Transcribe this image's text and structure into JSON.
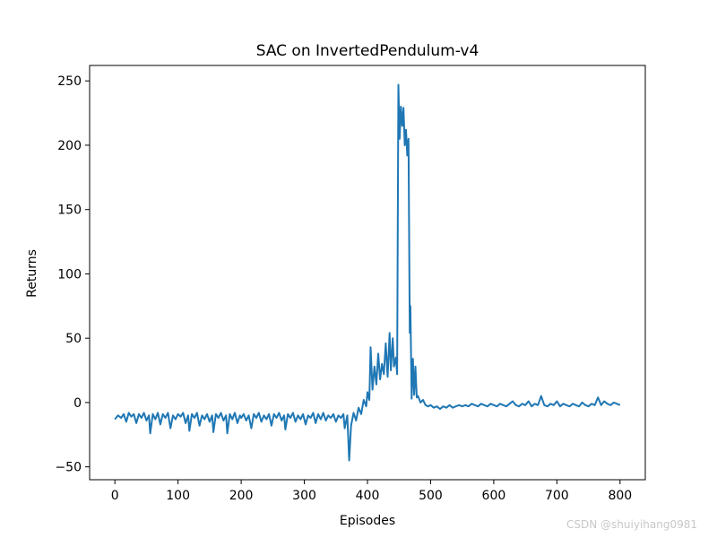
{
  "chart_data": {
    "type": "line",
    "title": "SAC on InvertedPendulum-v4",
    "xlabel": "Episodes",
    "ylabel": "Returns",
    "xlim": [
      -40,
      840
    ],
    "ylim": [
      -60,
      262
    ],
    "xticks": [
      0,
      100,
      200,
      300,
      400,
      500,
      600,
      700,
      800
    ],
    "yticks": [
      -50,
      0,
      50,
      100,
      150,
      200,
      250
    ],
    "grid": false,
    "color": "#1f77b4",
    "series": [
      {
        "points": [
          [
            0,
            -13
          ],
          [
            5,
            -10
          ],
          [
            10,
            -12
          ],
          [
            14,
            -9
          ],
          [
            18,
            -15
          ],
          [
            22,
            -8
          ],
          [
            26,
            -11
          ],
          [
            30,
            -9
          ],
          [
            34,
            -16
          ],
          [
            38,
            -9
          ],
          [
            42,
            -12
          ],
          [
            46,
            -8
          ],
          [
            50,
            -14
          ],
          [
            54,
            -10
          ],
          [
            56,
            -24
          ],
          [
            60,
            -9
          ],
          [
            64,
            -13
          ],
          [
            68,
            -8
          ],
          [
            72,
            -17
          ],
          [
            76,
            -9
          ],
          [
            80,
            -12
          ],
          [
            84,
            -8
          ],
          [
            88,
            -20
          ],
          [
            92,
            -10
          ],
          [
            96,
            -13
          ],
          [
            100,
            -9
          ],
          [
            104,
            -11
          ],
          [
            108,
            -8
          ],
          [
            112,
            -16
          ],
          [
            116,
            -10
          ],
          [
            118,
            -22
          ],
          [
            122,
            -9
          ],
          [
            126,
            -12
          ],
          [
            130,
            -8
          ],
          [
            134,
            -18
          ],
          [
            138,
            -10
          ],
          [
            142,
            -13
          ],
          [
            146,
            -9
          ],
          [
            150,
            -15
          ],
          [
            154,
            -10
          ],
          [
            156,
            -23
          ],
          [
            160,
            -9
          ],
          [
            164,
            -12
          ],
          [
            168,
            -8
          ],
          [
            172,
            -14
          ],
          [
            176,
            -10
          ],
          [
            178,
            -24
          ],
          [
            182,
            -9
          ],
          [
            186,
            -13
          ],
          [
            190,
            -8
          ],
          [
            194,
            -16
          ],
          [
            198,
            -10
          ],
          [
            200,
            -12
          ],
          [
            204,
            -9
          ],
          [
            208,
            -14
          ],
          [
            212,
            -10
          ],
          [
            216,
            -20
          ],
          [
            220,
            -9
          ],
          [
            224,
            -12
          ],
          [
            228,
            -8
          ],
          [
            232,
            -15
          ],
          [
            236,
            -10
          ],
          [
            240,
            -13
          ],
          [
            244,
            -9
          ],
          [
            248,
            -18
          ],
          [
            252,
            -9
          ],
          [
            256,
            -12
          ],
          [
            260,
            -8
          ],
          [
            264,
            -14
          ],
          [
            268,
            -10
          ],
          [
            270,
            -21
          ],
          [
            274,
            -9
          ],
          [
            278,
            -12
          ],
          [
            282,
            -8
          ],
          [
            286,
            -15
          ],
          [
            290,
            -10
          ],
          [
            294,
            -13
          ],
          [
            298,
            -9
          ],
          [
            302,
            -17
          ],
          [
            306,
            -10
          ],
          [
            310,
            -12
          ],
          [
            314,
            -8
          ],
          [
            318,
            -16
          ],
          [
            322,
            -9
          ],
          [
            326,
            -13
          ],
          [
            330,
            -8
          ],
          [
            334,
            -14
          ],
          [
            338,
            -10
          ],
          [
            342,
            -12
          ],
          [
            346,
            -9
          ],
          [
            350,
            -15
          ],
          [
            354,
            -10
          ],
          [
            358,
            -12
          ],
          [
            362,
            -9
          ],
          [
            364,
            -20
          ],
          [
            368,
            -10
          ],
          [
            371,
            -45
          ],
          [
            374,
            -18
          ],
          [
            378,
            -8
          ],
          [
            382,
            -14
          ],
          [
            386,
            -4
          ],
          [
            390,
            -9
          ],
          [
            394,
            2
          ],
          [
            398,
            -3
          ],
          [
            400,
            8
          ],
          [
            403,
            2
          ],
          [
            405,
            43
          ],
          [
            408,
            10
          ],
          [
            411,
            28
          ],
          [
            414,
            14
          ],
          [
            417,
            38
          ],
          [
            420,
            18
          ],
          [
            423,
            30
          ],
          [
            426,
            22
          ],
          [
            429,
            46
          ],
          [
            432,
            20
          ],
          [
            435,
            54
          ],
          [
            437,
            25
          ],
          [
            440,
            50
          ],
          [
            442,
            28
          ],
          [
            445,
            35
          ],
          [
            447,
            22
          ],
          [
            449,
            247
          ],
          [
            451,
            205
          ],
          [
            453,
            230
          ],
          [
            455,
            215
          ],
          [
            457,
            229
          ],
          [
            459,
            200
          ],
          [
            461,
            212
          ],
          [
            463,
            192
          ],
          [
            465,
            205
          ],
          [
            467,
            54
          ],
          [
            468,
            75
          ],
          [
            470,
            3
          ],
          [
            472,
            34
          ],
          [
            474,
            6
          ],
          [
            476,
            28
          ],
          [
            478,
            4
          ],
          [
            480,
            5
          ],
          [
            484,
            0
          ],
          [
            488,
            2
          ],
          [
            492,
            -2
          ],
          [
            496,
            -3
          ],
          [
            500,
            -2
          ],
          [
            505,
            -4
          ],
          [
            510,
            -3
          ],
          [
            515,
            -5
          ],
          [
            520,
            -3
          ],
          [
            525,
            -4
          ],
          [
            530,
            -2
          ],
          [
            535,
            -4
          ],
          [
            540,
            -3
          ],
          [
            545,
            -2
          ],
          [
            550,
            -3
          ],
          [
            555,
            -2
          ],
          [
            560,
            -3
          ],
          [
            565,
            -1
          ],
          [
            570,
            -2
          ],
          [
            575,
            -3
          ],
          [
            580,
            -1
          ],
          [
            585,
            -2
          ],
          [
            590,
            -3
          ],
          [
            595,
            -1
          ],
          [
            600,
            -2
          ],
          [
            605,
            -3
          ],
          [
            610,
            -1
          ],
          [
            615,
            -2
          ],
          [
            620,
            -3
          ],
          [
            625,
            -1
          ],
          [
            630,
            1
          ],
          [
            635,
            -2
          ],
          [
            640,
            -3
          ],
          [
            645,
            -1
          ],
          [
            650,
            -2
          ],
          [
            655,
            1
          ],
          [
            660,
            -3
          ],
          [
            665,
            -1
          ],
          [
            670,
            -2
          ],
          [
            675,
            5
          ],
          [
            680,
            -2
          ],
          [
            685,
            -3
          ],
          [
            690,
            -1
          ],
          [
            695,
            -2
          ],
          [
            700,
            1
          ],
          [
            705,
            -3
          ],
          [
            710,
            -1
          ],
          [
            715,
            -2
          ],
          [
            720,
            -3
          ],
          [
            725,
            -1
          ],
          [
            730,
            -2
          ],
          [
            735,
            -3
          ],
          [
            740,
            0
          ],
          [
            745,
            -2
          ],
          [
            750,
            -3
          ],
          [
            755,
            -1
          ],
          [
            760,
            -2
          ],
          [
            765,
            4
          ],
          [
            770,
            -2
          ],
          [
            775,
            1
          ],
          [
            780,
            -1
          ],
          [
            785,
            -2
          ],
          [
            790,
            0
          ],
          [
            795,
            -1
          ],
          [
            800,
            -2
          ]
        ]
      }
    ]
  },
  "watermark": "CSDN @shuiyihang0981"
}
